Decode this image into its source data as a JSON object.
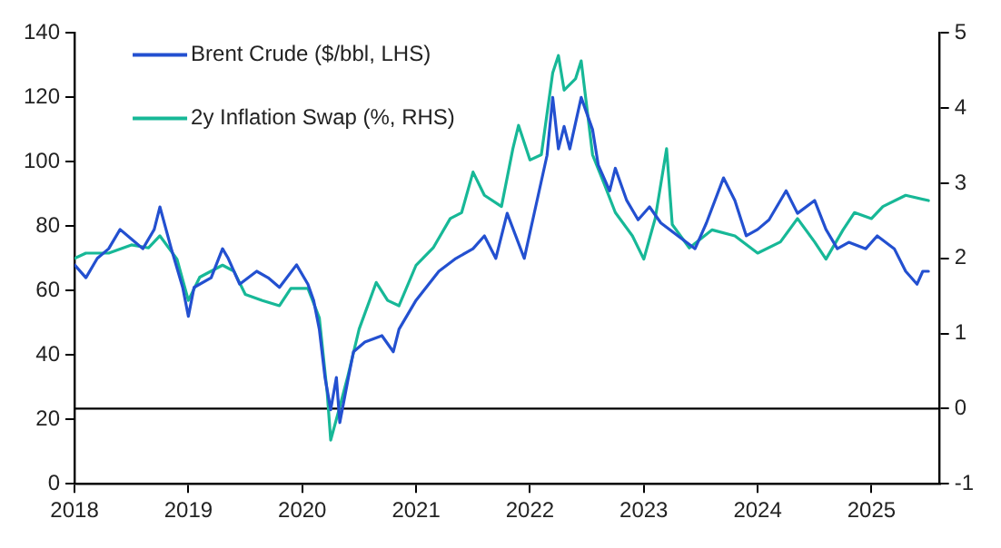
{
  "chart_data": {
    "type": "line",
    "series": [
      {
        "name": "Brent Crude ($/bbl, LHS)",
        "color": "#2350d0",
        "axis": "y",
        "x": [
          2018.0,
          2018.1,
          2018.2,
          2018.3,
          2018.4,
          2018.5,
          2018.6,
          2018.7,
          2018.75,
          2018.85,
          2018.95,
          2019.0,
          2019.05,
          2019.2,
          2019.3,
          2019.35,
          2019.45,
          2019.6,
          2019.7,
          2019.8,
          2019.95,
          2020.05,
          2020.1,
          2020.15,
          2020.2,
          2020.25,
          2020.3,
          2020.33,
          2020.4,
          2020.45,
          2020.55,
          2020.7,
          2020.8,
          2020.85,
          2021.0,
          2021.2,
          2021.35,
          2021.5,
          2021.6,
          2021.7,
          2021.8,
          2021.95,
          2022.05,
          2022.15,
          2022.2,
          2022.25,
          2022.3,
          2022.35,
          2022.45,
          2022.55,
          2022.6,
          2022.7,
          2022.75,
          2022.85,
          2022.95,
          2023.05,
          2023.15,
          2023.3,
          2023.45,
          2023.55,
          2023.7,
          2023.8,
          2023.9,
          2024.0,
          2024.1,
          2024.25,
          2024.35,
          2024.5,
          2024.6,
          2024.7,
          2024.8,
          2024.95,
          2025.05,
          2025.2,
          2025.3,
          2025.4,
          2025.45,
          2025.5
        ],
        "values": [
          68,
          64,
          70,
          73,
          79,
          76,
          73,
          79,
          86,
          73,
          61,
          52,
          61,
          64,
          73,
          70,
          62,
          66,
          64,
          61,
          68,
          62,
          57,
          48,
          33,
          23,
          33,
          19,
          32,
          41,
          44,
          46,
          41,
          48,
          57,
          66,
          70,
          73,
          77,
          70,
          84,
          70,
          86,
          102,
          120,
          104,
          111,
          104,
          120,
          110,
          99,
          91,
          98,
          88,
          82,
          86,
          81,
          77,
          73,
          81,
          95,
          88,
          77,
          79,
          82,
          91,
          84,
          88,
          79,
          73,
          75,
          73,
          77,
          73,
          66,
          62,
          66,
          66
        ]
      },
      {
        "name": "2y Inflation Swap (%, RHS)",
        "color": "#17b897",
        "axis": "y2",
        "x": [
          2018.0,
          2018.1,
          2018.3,
          2018.5,
          2018.65,
          2018.75,
          2018.9,
          2019.0,
          2019.1,
          2019.3,
          2019.4,
          2019.5,
          2019.65,
          2019.8,
          2019.9,
          2020.05,
          2020.15,
          2020.22,
          2020.25,
          2020.32,
          2020.4,
          2020.5,
          2020.65,
          2020.75,
          2020.85,
          2021.0,
          2021.15,
          2021.3,
          2021.4,
          2021.5,
          2021.6,
          2021.75,
          2021.85,
          2021.9,
          2022.0,
          2022.1,
          2022.2,
          2022.25,
          2022.3,
          2022.4,
          2022.45,
          2022.55,
          2022.65,
          2022.75,
          2022.9,
          2023.0,
          2023.1,
          2023.2,
          2023.25,
          2023.4,
          2023.6,
          2023.8,
          2024.0,
          2024.2,
          2024.35,
          2024.5,
          2024.6,
          2024.75,
          2024.85,
          2025.0,
          2025.1,
          2025.3,
          2025.5
        ],
        "values": [
          2.0,
          2.07,
          2.07,
          2.18,
          2.14,
          2.3,
          1.99,
          1.44,
          1.75,
          1.91,
          1.83,
          1.52,
          1.44,
          1.37,
          1.6,
          1.6,
          1.21,
          0.2,
          -0.42,
          -0.03,
          0.43,
          1.06,
          1.68,
          1.44,
          1.37,
          1.91,
          2.14,
          2.53,
          2.61,
          3.15,
          2.84,
          2.69,
          3.46,
          3.77,
          3.31,
          3.38,
          4.47,
          4.7,
          4.24,
          4.39,
          4.63,
          3.38,
          3.0,
          2.61,
          2.3,
          1.99,
          2.53,
          3.46,
          2.45,
          2.14,
          2.38,
          2.3,
          2.07,
          2.22,
          2.53,
          2.22,
          1.99,
          2.38,
          2.61,
          2.53,
          2.69,
          2.84,
          2.77
        ]
      }
    ],
    "xlim": [
      2018,
      2025.6
    ],
    "xticks": [
      2018,
      2019,
      2020,
      2021,
      2022,
      2023,
      2024,
      2025
    ],
    "ylim": [
      0,
      140
    ],
    "yticks": [
      0,
      20,
      40,
      60,
      80,
      100,
      120,
      140
    ],
    "y2lim": [
      -1,
      5
    ],
    "y2ticks": [
      -1,
      0,
      1,
      2,
      3,
      4,
      5
    ],
    "ref_lines": [
      {
        "axis": "y2",
        "value": 0,
        "color": "#000000"
      }
    ],
    "legend": "top left",
    "grid": false,
    "marker": "none",
    "line_style": "solid"
  }
}
